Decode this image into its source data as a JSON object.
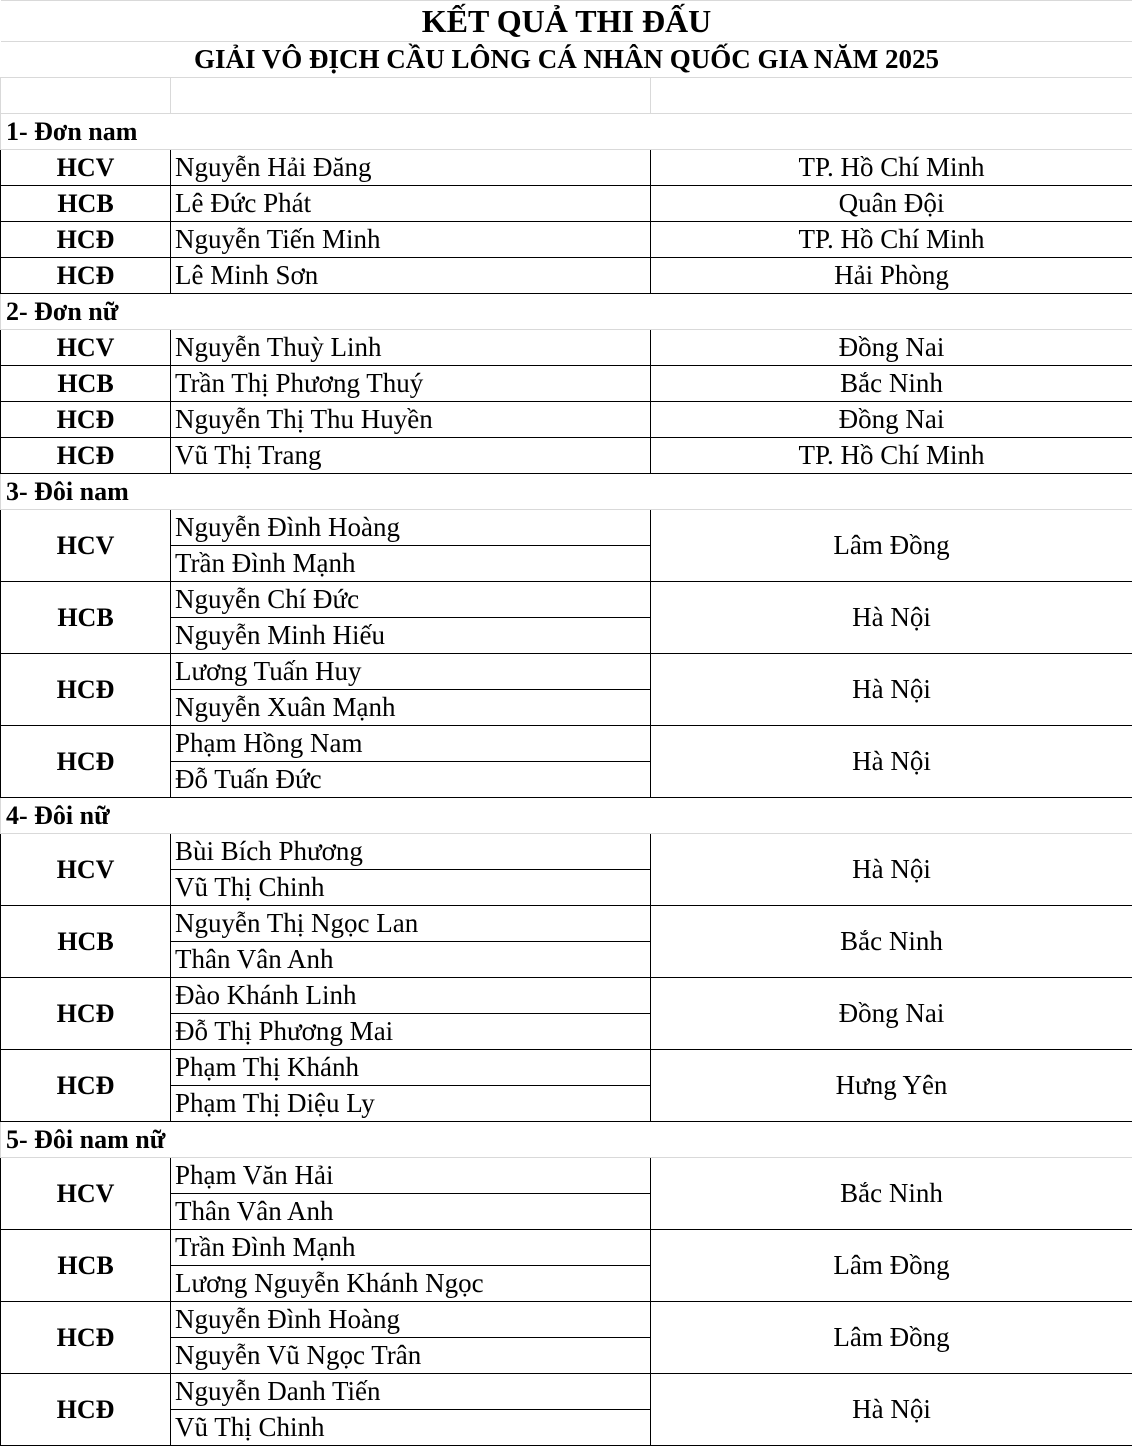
{
  "title": "KẾT QUẢ THI ĐẤU",
  "subtitle": "GIẢI VÔ ĐỊCH CẦU LÔNG CÁ NHÂN QUỐC GIA NĂM 2025",
  "sections": [
    {
      "label": "1- Đơn nam",
      "entries": [
        {
          "medal": "HCV",
          "players": [
            "Nguyễn Hải Đăng"
          ],
          "unit": "TP. Hồ Chí Minh"
        },
        {
          "medal": "HCB",
          "players": [
            "Lê Đức Phát"
          ],
          "unit": "Quân Đội"
        },
        {
          "medal": "HCĐ",
          "players": [
            "Nguyễn Tiến Minh"
          ],
          "unit": "TP. Hồ Chí Minh"
        },
        {
          "medal": "HCĐ",
          "players": [
            "Lê Minh Sơn"
          ],
          "unit": "Hải Phòng"
        }
      ]
    },
    {
      "label": "2- Đơn nữ",
      "entries": [
        {
          "medal": "HCV",
          "players": [
            "Nguyễn Thuỳ Linh"
          ],
          "unit": "Đồng Nai"
        },
        {
          "medal": "HCB",
          "players": [
            "Trần Thị Phương Thuý"
          ],
          "unit": "Bắc Ninh"
        },
        {
          "medal": "HCĐ",
          "players": [
            "Nguyễn Thị Thu Huyền"
          ],
          "unit": "Đồng Nai"
        },
        {
          "medal": "HCĐ",
          "players": [
            "Vũ Thị Trang"
          ],
          "unit": "TP. Hồ Chí Minh"
        }
      ]
    },
    {
      "label": "3- Đôi nam",
      "entries": [
        {
          "medal": "HCV",
          "players": [
            "Nguyễn Đình Hoàng",
            "Trần Đình Mạnh"
          ],
          "unit": "Lâm Đồng"
        },
        {
          "medal": "HCB",
          "players": [
            "Nguyễn Chí Đức",
            "Nguyễn Minh Hiếu"
          ],
          "unit": "Hà Nội"
        },
        {
          "medal": "HCĐ",
          "players": [
            "Lương Tuấn Huy",
            "Nguyễn Xuân Mạnh"
          ],
          "unit": "Hà Nội"
        },
        {
          "medal": "HCĐ",
          "players": [
            "Phạm Hồng Nam",
            "Đỗ Tuấn Đức"
          ],
          "unit": "Hà Nội"
        }
      ]
    },
    {
      "label": "4- Đôi nữ",
      "entries": [
        {
          "medal": "HCV",
          "players": [
            "Bùi Bích Phương",
            "Vũ Thị Chinh"
          ],
          "unit": "Hà Nội"
        },
        {
          "medal": "HCB",
          "players": [
            "Nguyễn Thị Ngọc Lan",
            "Thân Vân Anh"
          ],
          "unit": "Bắc Ninh"
        },
        {
          "medal": "HCĐ",
          "players": [
            "Đào Khánh Linh",
            "Đỗ Thị Phương Mai"
          ],
          "unit": "Đồng Nai"
        },
        {
          "medal": "HCĐ",
          "players": [
            "Phạm Thị Khánh",
            "Phạm Thị Diệu Ly"
          ],
          "unit": "Hưng Yên"
        }
      ]
    },
    {
      "label": "5- Đôi nam nữ",
      "entries": [
        {
          "medal": "HCV",
          "players": [
            "Phạm Văn Hải",
            "Thân Vân Anh"
          ],
          "unit": "Bắc Ninh"
        },
        {
          "medal": "HCB",
          "players": [
            "Trần Đình Mạnh",
            "Lương Nguyễn Khánh Ngọc"
          ],
          "unit": "Lâm Đồng"
        },
        {
          "medal": "HCĐ",
          "players": [
            "Nguyễn Đình Hoàng",
            "Nguyễn Vũ Ngọc Trân"
          ],
          "unit": "Lâm Đồng"
        },
        {
          "medal": "HCĐ",
          "players": [
            "Nguyễn Danh Tiến",
            "Vũ Thị Chinh"
          ],
          "unit": "Hà Nội"
        }
      ]
    }
  ]
}
